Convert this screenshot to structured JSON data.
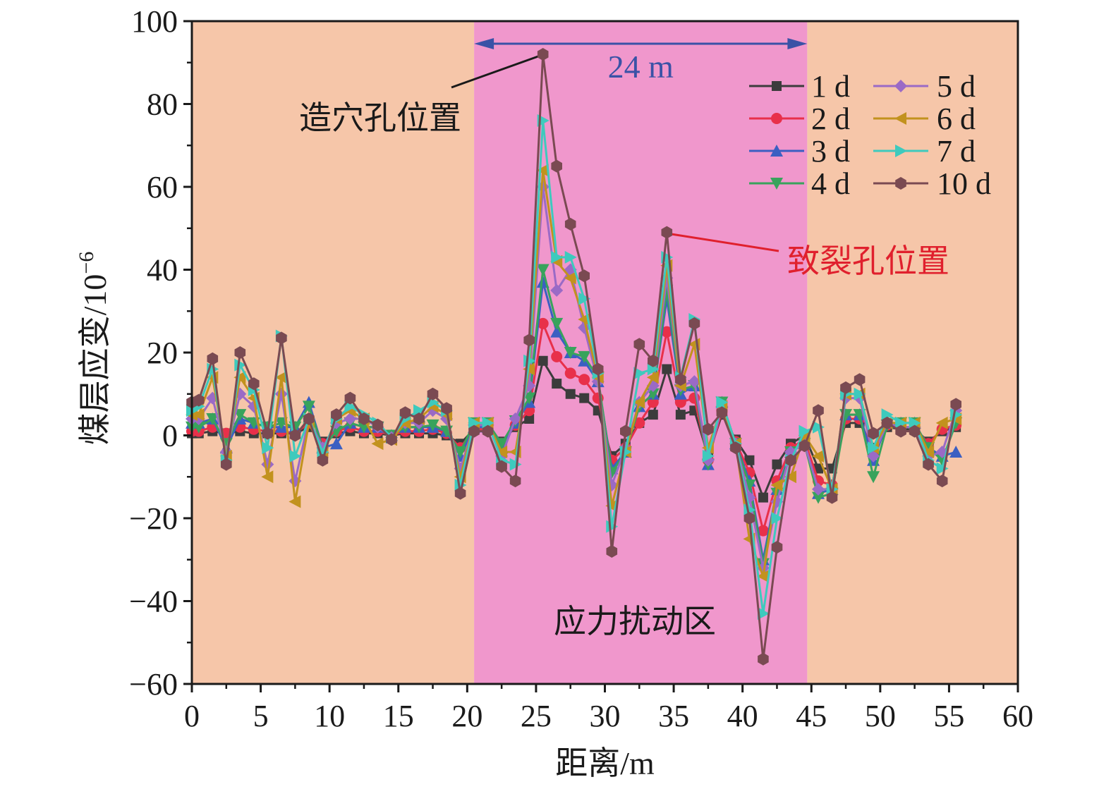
{
  "chart_data": {
    "type": "line",
    "xlabel": "距离/m",
    "ylabel": "煤层应变/10",
    "ylabel_exponent": "−6",
    "xlim": [
      0,
      60
    ],
    "ylim": [
      -60,
      100
    ],
    "xticks": [
      "0",
      "5",
      "10",
      "15",
      "20",
      "25",
      "30",
      "35",
      "40",
      "45",
      "50",
      "55",
      "60"
    ],
    "yticks": [
      "−60",
      "−40",
      "−20",
      "0",
      "20",
      "40",
      "60",
      "80",
      "100"
    ],
    "grid": false,
    "legend_position": "top-right",
    "regions": [
      {
        "x0": 0,
        "x1": 20.5,
        "color": "#f6c6a9"
      },
      {
        "x0": 20.5,
        "x1": 44.7,
        "color": "#f097cc"
      },
      {
        "x0": 44.7,
        "x1": 60,
        "color": "#f6c6a9"
      }
    ],
    "annotations": {
      "span_label": "24 m",
      "span_x": [
        20.5,
        44.7
      ],
      "span_color": "#3a52a6",
      "cave_hole": "造穴孔位置",
      "cave_hole_color": "#1a1a1a",
      "crack_hole": "致裂孔位置",
      "crack_hole_color": "#e0202d",
      "zone": "应力扰动区"
    },
    "x": [
      0,
      0.5,
      1.5,
      2.5,
      3.5,
      4.5,
      5.5,
      6.5,
      7.5,
      8.5,
      9.5,
      10.5,
      11.5,
      12.5,
      13.5,
      14.5,
      15.5,
      16.5,
      17.5,
      18.5,
      19.5,
      20.5,
      21.5,
      22.5,
      23.5,
      24.5,
      25.5,
      26.5,
      27.5,
      28.5,
      29.5,
      30.5,
      31.5,
      32.5,
      33.5,
      34.5,
      35.5,
      36.5,
      37.5,
      38.5,
      39.5,
      40.5,
      41.5,
      42.5,
      43.5,
      44.5,
      45.5,
      46.5,
      47.5,
      48.5,
      49.5,
      50.5,
      51.5,
      52.5,
      53.5,
      54.5,
      55.5
    ],
    "series": [
      {
        "name": "1 d",
        "color": "#3c3c3c",
        "marker": "square",
        "values": [
          0.5,
          0.5,
          1,
          0.5,
          1,
          0.5,
          0.5,
          0.5,
          0.5,
          2,
          -1.5,
          0.5,
          1,
          0.5,
          0.5,
          0,
          0.5,
          0.5,
          0.5,
          0,
          -2,
          1.5,
          1.5,
          -1.5,
          2,
          4,
          18,
          12.5,
          10,
          9,
          6,
          -5,
          -2,
          3,
          5,
          16,
          5,
          6,
          -5,
          5,
          -1,
          -6,
          -15,
          -7,
          -2,
          0,
          -8,
          -8,
          3,
          3,
          -3,
          2,
          1.5,
          1.5,
          -1.5,
          1,
          2
        ]
      },
      {
        "name": "2 d",
        "color": "#e8304a",
        "marker": "circle",
        "values": [
          1,
          1,
          2,
          0.5,
          2,
          1.5,
          1,
          1,
          0.5,
          3,
          -2,
          1,
          2,
          1,
          1,
          0,
          1,
          1,
          1.5,
          0.5,
          -3,
          1.5,
          1.5,
          -2,
          2.5,
          6,
          27,
          19,
          15,
          13.5,
          9,
          -6,
          -3,
          3,
          8,
          25,
          8,
          9,
          -6,
          6,
          -1.5,
          -9,
          -23,
          -11,
          -3,
          -1,
          -11,
          -12,
          4,
          4,
          -4,
          2.5,
          2,
          2,
          -2,
          1.5,
          2.5
        ]
      },
      {
        "name": "3 d",
        "color": "#3b5fc2",
        "marker": "triangle-up",
        "values": [
          3,
          3,
          4,
          -3,
          4,
          3,
          2,
          2,
          2,
          8,
          -3,
          -2,
          3,
          2,
          2,
          0,
          2,
          2,
          2,
          1,
          -5,
          2,
          2,
          -3,
          3,
          8,
          37,
          25,
          20,
          18,
          13,
          -8,
          -4,
          7,
          10,
          33,
          10,
          12,
          -7,
          8,
          -2,
          -11,
          -30,
          -13,
          -4,
          -2,
          -14,
          -13,
          5,
          5,
          -6,
          3,
          3,
          3,
          -3,
          -5,
          -4
        ]
      },
      {
        "name": "4 d",
        "color": "#38a35c",
        "marker": "triangle-down",
        "values": [
          2,
          2,
          4,
          -2,
          5,
          3,
          2,
          3,
          2,
          7,
          -3,
          1,
          3,
          2,
          2,
          0,
          2,
          2,
          2.5,
          1,
          -4,
          3,
          3,
          -2,
          3.5,
          9,
          40,
          27,
          20,
          19,
          14,
          -9,
          -4,
          7,
          10,
          35,
          11,
          12,
          -7,
          8,
          -2,
          -12,
          -31,
          -14,
          -4,
          -2,
          -15,
          -14,
          5,
          5,
          -10,
          2.5,
          3,
          3,
          -3,
          -6,
          3
        ]
      },
      {
        "name": "5 d",
        "color": "#9a6ac6",
        "marker": "diamond",
        "values": [
          4,
          4,
          9,
          -4,
          10,
          7,
          -7,
          10,
          -11,
          4,
          -3,
          3,
          4,
          4,
          2,
          -0.5,
          3,
          3,
          6,
          4,
          -8,
          2.5,
          2.5,
          -5,
          4,
          12,
          60,
          35,
          40,
          26,
          13,
          -12,
          -3,
          8,
          12,
          38,
          12,
          13,
          -6,
          7,
          -2,
          -15,
          -32,
          -16,
          -4,
          -2,
          -13,
          -13,
          9,
          9,
          -5,
          3,
          2,
          2,
          -5,
          -4,
          6
        ]
      },
      {
        "name": "6 d",
        "color": "#c2921e",
        "marker": "triangle-left",
        "values": [
          5,
          5,
          14,
          -5,
          14,
          9,
          -10,
          14,
          -16,
          3,
          -4,
          4,
          6,
          4,
          -2,
          -1,
          3,
          4,
          7,
          5,
          -10,
          3,
          3,
          -4,
          -4,
          16,
          64,
          42,
          38,
          28,
          14,
          -17,
          -4,
          8,
          14,
          41,
          12,
          22,
          -3,
          7,
          -2,
          -25,
          -34,
          -12,
          -10,
          0,
          -5,
          -13,
          10,
          10,
          -3,
          3,
          3,
          3,
          -4,
          3,
          4
        ]
      },
      {
        "name": "7 d",
        "color": "#3ecabd",
        "marker": "triangle-right",
        "values": [
          6,
          7,
          16,
          -6,
          17,
          11,
          -3,
          24,
          -5,
          4,
          -4,
          4,
          7,
          5,
          3,
          -0.5,
          4,
          6,
          8,
          6,
          -12,
          3,
          3,
          -6,
          -7,
          18,
          76,
          43,
          43,
          33,
          15,
          -22,
          -4,
          15,
          16,
          43,
          14,
          28,
          -5,
          8,
          -2,
          -18,
          -43,
          -20,
          -6,
          1,
          2,
          -13,
          10,
          10,
          -3,
          5,
          3,
          3,
          -6,
          -8,
          5
        ]
      },
      {
        "name": "10 d",
        "color": "#7a4a52",
        "marker": "hexagon",
        "values": [
          8,
          8.5,
          18.5,
          -7,
          20,
          12.5,
          0.5,
          23.5,
          0,
          4,
          -6,
          5,
          9,
          4,
          2.5,
          -1,
          5.5,
          4,
          10,
          6.5,
          -14,
          1,
          1,
          -7.5,
          -11,
          23,
          92,
          65,
          51,
          38.5,
          16,
          -28,
          1,
          22,
          18,
          49,
          13.5,
          27,
          1.5,
          5.5,
          -3,
          -20,
          -54,
          -27,
          -6,
          -2.5,
          6,
          -15,
          11.5,
          13.5,
          0.5,
          3,
          1,
          1,
          -7,
          -11,
          7.5
        ]
      }
    ]
  }
}
